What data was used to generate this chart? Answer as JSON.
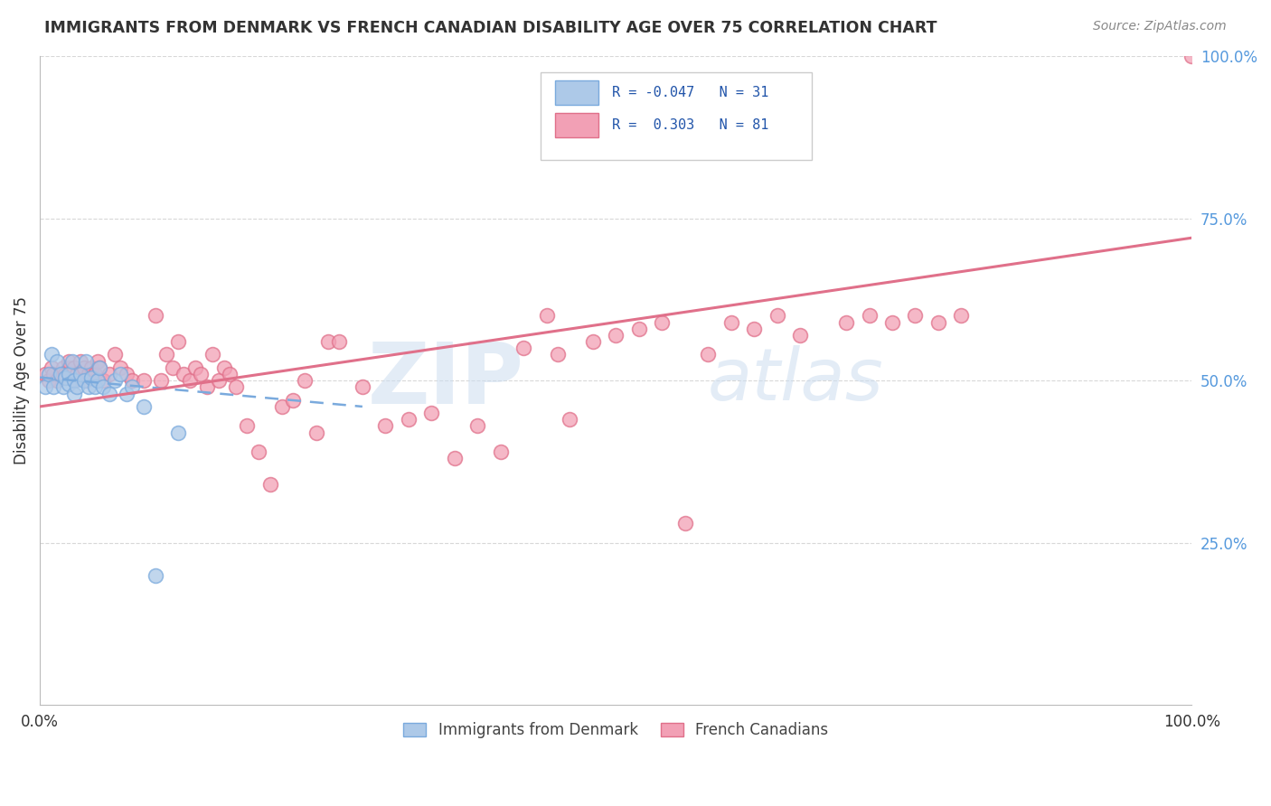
{
  "title": "IMMIGRANTS FROM DENMARK VS FRENCH CANADIAN DISABILITY AGE OVER 75 CORRELATION CHART",
  "source": "Source: ZipAtlas.com",
  "ylabel": "Disability Age Over 75",
  "xlim": [
    0,
    1.0
  ],
  "ylim": [
    0,
    1.0
  ],
  "ytick_labels_right": [
    "100.0%",
    "75.0%",
    "50.0%",
    "25.0%"
  ],
  "ytick_positions_right": [
    1.0,
    0.75,
    0.5,
    0.25
  ],
  "color_denmark": "#adc9e8",
  "color_french": "#f2a0b5",
  "color_denmark_edge": "#7aaadd",
  "color_french_edge": "#e0708a",
  "color_denmark_line": "#7aaadd",
  "color_french_line": "#e0708a",
  "color_grid": "#d8d8d8",
  "denmark_x": [
    0.005,
    0.008,
    0.01,
    0.012,
    0.015,
    0.018,
    0.02,
    0.022,
    0.025,
    0.025,
    0.028,
    0.03,
    0.03,
    0.032,
    0.035,
    0.038,
    0.04,
    0.042,
    0.045,
    0.048,
    0.05,
    0.052,
    0.055,
    0.06,
    0.065,
    0.07,
    0.075,
    0.08,
    0.09,
    0.1,
    0.12
  ],
  "denmark_y": [
    0.49,
    0.51,
    0.54,
    0.49,
    0.53,
    0.51,
    0.49,
    0.505,
    0.51,
    0.495,
    0.53,
    0.5,
    0.48,
    0.49,
    0.51,
    0.5,
    0.53,
    0.49,
    0.505,
    0.49,
    0.5,
    0.52,
    0.49,
    0.48,
    0.5,
    0.51,
    0.48,
    0.49,
    0.46,
    0.2,
    0.42
  ],
  "french_x": [
    0.005,
    0.008,
    0.01,
    0.012,
    0.015,
    0.018,
    0.02,
    0.022,
    0.025,
    0.025,
    0.028,
    0.03,
    0.03,
    0.032,
    0.035,
    0.038,
    0.04,
    0.042,
    0.045,
    0.048,
    0.05,
    0.052,
    0.055,
    0.06,
    0.065,
    0.07,
    0.075,
    0.08,
    0.09,
    0.1,
    0.105,
    0.11,
    0.115,
    0.12,
    0.125,
    0.13,
    0.135,
    0.14,
    0.145,
    0.15,
    0.155,
    0.16,
    0.165,
    0.17,
    0.18,
    0.19,
    0.2,
    0.21,
    0.22,
    0.23,
    0.24,
    0.25,
    0.26,
    0.28,
    0.3,
    0.32,
    0.34,
    0.36,
    0.38,
    0.4,
    0.42,
    0.44,
    0.45,
    0.46,
    0.48,
    0.5,
    0.52,
    0.54,
    0.56,
    0.58,
    0.6,
    0.62,
    0.64,
    0.66,
    0.7,
    0.72,
    0.74,
    0.76,
    0.78,
    0.8,
    1.0
  ],
  "french_y": [
    0.51,
    0.5,
    0.52,
    0.51,
    0.5,
    0.51,
    0.52,
    0.51,
    0.52,
    0.53,
    0.51,
    0.52,
    0.5,
    0.51,
    0.53,
    0.52,
    0.5,
    0.51,
    0.52,
    0.51,
    0.53,
    0.52,
    0.5,
    0.51,
    0.54,
    0.52,
    0.51,
    0.5,
    0.5,
    0.6,
    0.5,
    0.54,
    0.52,
    0.56,
    0.51,
    0.5,
    0.52,
    0.51,
    0.49,
    0.54,
    0.5,
    0.52,
    0.51,
    0.49,
    0.43,
    0.39,
    0.34,
    0.46,
    0.47,
    0.5,
    0.42,
    0.56,
    0.56,
    0.49,
    0.43,
    0.44,
    0.45,
    0.38,
    0.43,
    0.39,
    0.55,
    0.6,
    0.54,
    0.44,
    0.56,
    0.57,
    0.58,
    0.59,
    0.28,
    0.54,
    0.59,
    0.58,
    0.6,
    0.57,
    0.59,
    0.6,
    0.59,
    0.6,
    0.59,
    0.6,
    1.0
  ],
  "dk_line_x": [
    0.0,
    0.28
  ],
  "dk_line_y": [
    0.505,
    0.46
  ],
  "fr_line_x": [
    0.0,
    1.0
  ],
  "fr_line_y": [
    0.46,
    0.72
  ]
}
